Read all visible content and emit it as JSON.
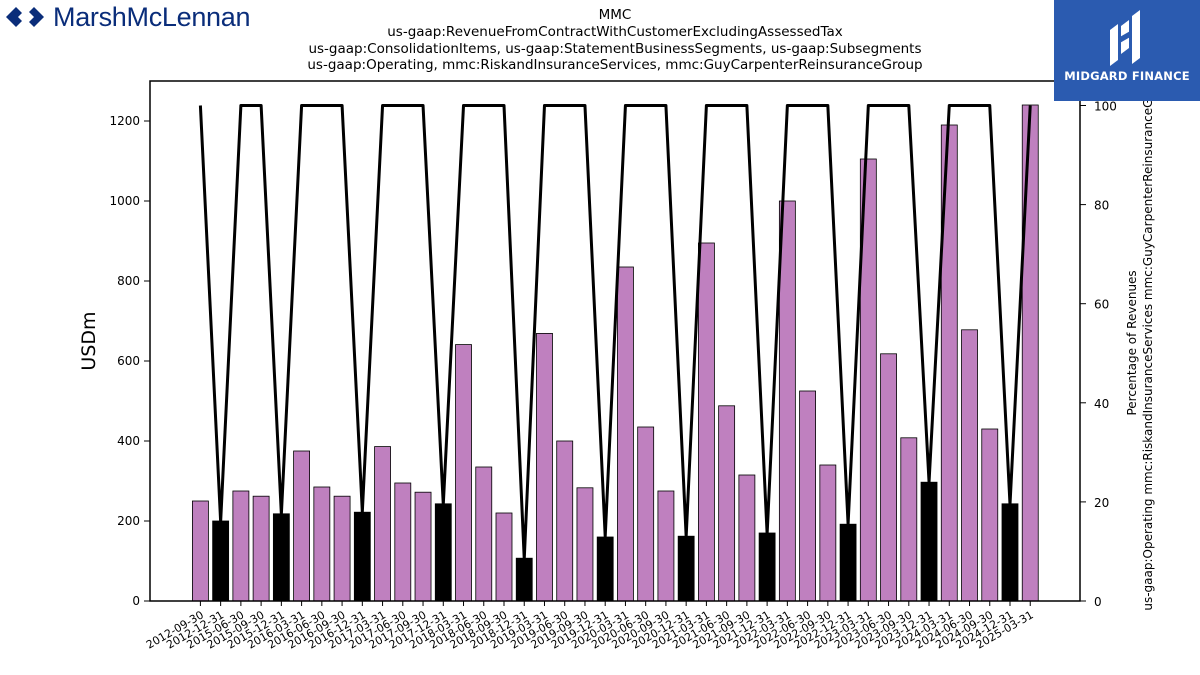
{
  "header": {
    "brand_left": "MarshMcLennan",
    "brand_right": "MIDGARD FINANCE",
    "title_lines": [
      "MMC",
      "us-gaap:RevenueFromContractWithCustomerExcludingAssessedTax",
      "us-gaap:ConsolidationItems, us-gaap:StatementBusinessSegments, us-gaap:Subsegments",
      "us-gaap:Operating, mmc:RiskandInsuranceServices, mmc:GuyCarpenterReinsuranceGroup"
    ]
  },
  "colors": {
    "bar_quarter": "#bf80bf",
    "bar_annual": "#000000",
    "line": "#000000",
    "brand_left": "#0a2d7a",
    "brand_right_bg": "#2b5bb0"
  },
  "chart_data": {
    "type": "bar",
    "title": "",
    "xlabel": "",
    "ylabel": "USDm",
    "y2label": "Percentage of Revenues\nus-gaap:Operating mmc:RiskandInsuranceServices mmc:GuyCarpenterReinsuranceGroup",
    "ylim": [
      0,
      1300
    ],
    "y2lim": [
      0,
      100
    ],
    "yticks": [
      0,
      200,
      400,
      600,
      800,
      1000,
      1200
    ],
    "y2ticks": [
      0,
      20,
      40,
      60,
      80,
      100
    ],
    "grid": false,
    "categories": [
      "2012-09-30",
      "2012-12-31",
      "2015-06-30",
      "2015-09-30",
      "2015-12-31",
      "2016-03-31",
      "2016-06-30",
      "2016-09-30",
      "2016-12-31",
      "2017-03-31",
      "2017-06-30",
      "2017-09-30",
      "2017-12-31",
      "2018-03-31",
      "2018-06-30",
      "2018-09-30",
      "2018-12-31",
      "2019-03-31",
      "2019-06-30",
      "2019-09-30",
      "2019-12-31",
      "2020-03-31",
      "2020-06-30",
      "2020-09-30",
      "2020-12-31",
      "2021-03-31",
      "2021-06-30",
      "2021-09-30",
      "2021-12-31",
      "2022-03-31",
      "2022-06-30",
      "2022-09-30",
      "2022-12-31",
      "2023-03-31",
      "2023-06-30",
      "2023-09-30",
      "2023-12-31",
      "2024-03-31",
      "2024-06-30",
      "2024-09-30",
      "2024-12-31",
      "2025-03-31"
    ],
    "series": [
      {
        "type": "bar",
        "values": [
          250,
          200,
          275,
          262,
          218,
          375,
          285,
          262,
          222,
          386,
          295,
          272,
          243,
          641,
          335,
          220,
          107,
          669,
          400,
          283,
          160,
          835,
          435,
          275,
          162,
          895,
          488,
          315,
          170,
          1000,
          525,
          340,
          192,
          1105,
          618,
          408,
          297,
          1190,
          678,
          430,
          243,
          1240
        ],
        "highlight": [
          false,
          true,
          false,
          false,
          true,
          false,
          false,
          false,
          true,
          false,
          false,
          false,
          true,
          false,
          false,
          false,
          true,
          false,
          false,
          false,
          true,
          false,
          false,
          false,
          true,
          false,
          false,
          false,
          true,
          false,
          false,
          false,
          true,
          false,
          false,
          false,
          true,
          false,
          false,
          false,
          true,
          false
        ]
      },
      {
        "type": "line",
        "axis": "right",
        "values": [
          100,
          16,
          100,
          100,
          17.5,
          100,
          100,
          100,
          18,
          100,
          100,
          100,
          19.5,
          100,
          100,
          100,
          8.5,
          100,
          100,
          100,
          13,
          100,
          100,
          100,
          13,
          100,
          100,
          100,
          13.5,
          100,
          100,
          100,
          15.5,
          100,
          100,
          100,
          24,
          100,
          100,
          100,
          19.5,
          100
        ]
      }
    ]
  }
}
